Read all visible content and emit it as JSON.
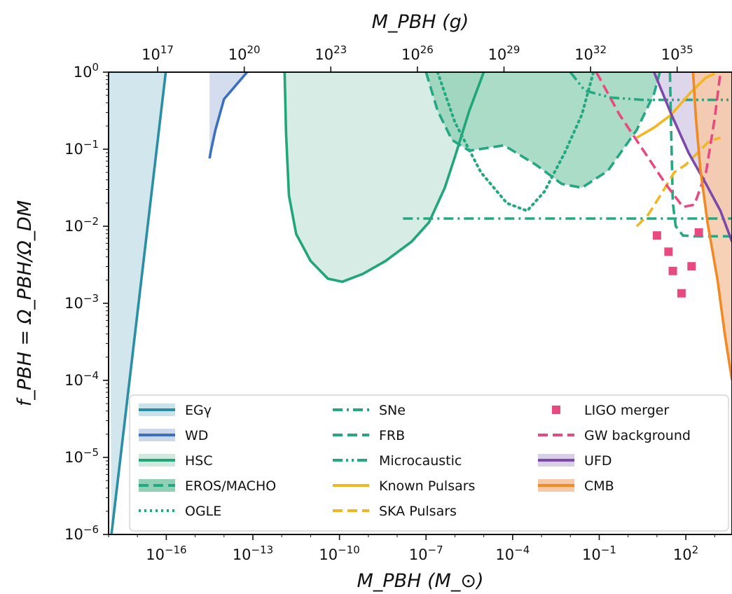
{
  "chart_data": {
    "type": "line",
    "title": "",
    "xlabel_bottom": "M_PBH (M_⊙)",
    "xlabel_top": "M_PBH (g)",
    "ylabel": "f_PBH = Ω_PBH/Ω_DM",
    "x_scale": "log",
    "y_scale": "log",
    "xlim_log10": [
      -18,
      3.6
    ],
    "ylim_log10": [
      -6,
      0
    ],
    "x_ticks_bottom": [
      {
        "value": -16,
        "label": "10^-16"
      },
      {
        "value": -13,
        "label": "10^-13"
      },
      {
        "value": -10,
        "label": "10^-10"
      },
      {
        "value": -7,
        "label": "10^-7"
      },
      {
        "value": -4,
        "label": "10^-4"
      },
      {
        "value": -1,
        "label": "10^-1"
      },
      {
        "value": 2,
        "label": "10^2"
      }
    ],
    "x_ticks_top": [
      {
        "value": 17,
        "label": "10^17"
      },
      {
        "value": 20,
        "label": "10^20"
      },
      {
        "value": 23,
        "label": "10^23"
      },
      {
        "value": 26,
        "label": "10^26"
      },
      {
        "value": 29,
        "label": "10^29"
      },
      {
        "value": 32,
        "label": "10^32"
      },
      {
        "value": 35,
        "label": "10^35"
      }
    ],
    "grams_per_msun_log10": 33.3,
    "y_ticks": [
      {
        "value": 0,
        "label": "10^0"
      },
      {
        "value": -1,
        "label": "10^-1"
      },
      {
        "value": -2,
        "label": "10^-2"
      },
      {
        "value": -3,
        "label": "10^-3"
      },
      {
        "value": -4,
        "label": "10^-4"
      },
      {
        "value": -5,
        "label": "10^-5"
      },
      {
        "value": -6,
        "label": "10^-6"
      }
    ],
    "legend_position": "lower-right",
    "series": [
      {
        "name": "EGγ",
        "color": "#2a8fa5",
        "fill": "#c9e2ea",
        "style": "solid",
        "points": [
          [
            -17.9,
            -6.0
          ],
          [
            -16.02,
            0.0
          ]
        ]
      },
      {
        "name": "WD",
        "color": "#3b6fc0",
        "fill": "#ccd7ea",
        "style": "solid",
        "points": [
          [
            -14.5,
            -1.12
          ],
          [
            -14.46,
            -1.03
          ],
          [
            -14.3,
            -0.75
          ],
          [
            -14.0,
            -0.35
          ],
          [
            -13.2,
            0.0
          ]
        ]
      },
      {
        "name": "HSC",
        "color": "#21a67a",
        "fill": "#cfe9df",
        "style": "solid",
        "points": [
          [
            -11.9,
            0.0
          ],
          [
            -11.85,
            -0.8
          ],
          [
            -11.75,
            -1.6
          ],
          [
            -11.5,
            -2.1
          ],
          [
            -11.0,
            -2.45
          ],
          [
            -10.4,
            -2.68
          ],
          [
            -9.9,
            -2.72
          ],
          [
            -9.2,
            -2.62
          ],
          [
            -8.4,
            -2.45
          ],
          [
            -7.5,
            -2.2
          ],
          [
            -6.9,
            -1.95
          ],
          [
            -6.35,
            -1.5
          ],
          [
            -6.0,
            -1.1
          ],
          [
            -5.5,
            -0.5
          ],
          [
            -5.0,
            0.0
          ]
        ]
      },
      {
        "name": "SNe",
        "color": "#24a882",
        "style": "dashdot",
        "points": [
          [
            -7.8,
            -1.9
          ],
          [
            3.6,
            -1.9
          ]
        ]
      },
      {
        "name": "FRB",
        "color": "#24a882",
        "style": "dashed",
        "points": [
          [
            1.45,
            0.0
          ],
          [
            1.5,
            -0.9
          ],
          [
            1.55,
            -1.7
          ],
          [
            1.65,
            -2.0
          ],
          [
            1.9,
            -2.12
          ],
          [
            2.3,
            -2.13
          ],
          [
            3.6,
            -2.13
          ]
        ]
      },
      {
        "name": "Microcaustic",
        "color": "#24a882",
        "style": "dashdotdot",
        "points": [
          [
            -2.0,
            0.0
          ],
          [
            -1.5,
            -0.24
          ],
          [
            -0.6,
            -0.33
          ],
          [
            0.5,
            -0.36
          ],
          [
            1.2,
            -0.36
          ],
          [
            2.0,
            -0.36
          ],
          [
            3.6,
            -0.36
          ]
        ]
      },
      {
        "name": "EROS/MACHO",
        "color": "#24a882",
        "fill": "#8fd0b6",
        "style": "dashed",
        "points": [
          [
            -7.0,
            0.0
          ],
          [
            -6.6,
            -0.5
          ],
          [
            -6.1,
            -0.88
          ],
          [
            -5.5,
            -1.02
          ],
          [
            -4.3,
            -0.95
          ],
          [
            -3.2,
            -1.2
          ],
          [
            -2.3,
            -1.45
          ],
          [
            -1.6,
            -1.5
          ],
          [
            -0.7,
            -1.28
          ],
          [
            0.3,
            -0.75
          ],
          [
            0.9,
            -0.28
          ],
          [
            1.1,
            0.0
          ]
        ]
      },
      {
        "name": "OGLE",
        "color": "#24a882",
        "style": "dotted",
        "points": [
          [
            -6.6,
            0.0
          ],
          [
            -6.0,
            -0.65
          ],
          [
            -5.1,
            -1.3
          ],
          [
            -4.2,
            -1.7
          ],
          [
            -3.5,
            -1.8
          ],
          [
            -2.9,
            -1.55
          ],
          [
            -2.2,
            -1.05
          ],
          [
            -1.6,
            -0.55
          ],
          [
            -1.2,
            0.0
          ]
        ]
      },
      {
        "name": "Known Pulsars",
        "color": "#f2b620",
        "style": "solid",
        "points": [
          [
            0.3,
            -0.85
          ],
          [
            0.9,
            -0.72
          ],
          [
            1.5,
            -0.55
          ],
          [
            2.2,
            -0.25
          ],
          [
            2.7,
            -0.07
          ],
          [
            3.0,
            -0.02
          ]
        ]
      },
      {
        "name": "SKA Pulsars",
        "color": "#f2b620",
        "style": "dashed",
        "points": [
          [
            0.3,
            -2.0
          ],
          [
            0.7,
            -1.85
          ],
          [
            1.2,
            -1.55
          ],
          [
            1.6,
            -1.3
          ],
          [
            2.0,
            -1.2
          ],
          [
            2.4,
            -1.05
          ],
          [
            2.8,
            -0.9
          ],
          [
            3.2,
            -0.85
          ]
        ]
      },
      {
        "name": "LIGO merger",
        "color": "#e84a7f",
        "style": "markers",
        "points": [
          [
            1.0,
            -2.12
          ],
          [
            1.4,
            -2.33
          ],
          [
            1.55,
            -2.58
          ],
          [
            1.85,
            -2.87
          ],
          [
            2.2,
            -2.52
          ],
          [
            2.45,
            -2.08
          ]
        ]
      },
      {
        "name": "GW background",
        "color": "#e84a7f",
        "style": "dashed",
        "points": [
          [
            -1.1,
            0.0
          ],
          [
            -0.3,
            -0.55
          ],
          [
            0.5,
            -1.0
          ],
          [
            1.3,
            -1.45
          ],
          [
            1.9,
            -1.75
          ],
          [
            2.3,
            -1.72
          ],
          [
            2.7,
            -1.3
          ],
          [
            3.0,
            -0.6
          ],
          [
            3.2,
            0.0
          ]
        ]
      },
      {
        "name": "UFD",
        "color": "#7b4aa8",
        "fill": "#d8cfe6",
        "style": "solid",
        "points": [
          [
            0.9,
            0.0
          ],
          [
            1.5,
            -0.55
          ],
          [
            2.1,
            -1.05
          ],
          [
            2.7,
            -1.45
          ],
          [
            3.2,
            -1.8
          ],
          [
            3.6,
            -2.2
          ]
        ]
      },
      {
        "name": "CMB",
        "color": "#f08a24",
        "fill": "#f6c9a8",
        "style": "solid",
        "points": [
          [
            2.25,
            0.0
          ],
          [
            2.35,
            -0.6
          ],
          [
            2.5,
            -1.25
          ],
          [
            2.75,
            -1.95
          ],
          [
            3.1,
            -2.7
          ],
          [
            3.35,
            -3.4
          ],
          [
            3.6,
            -4.0
          ]
        ]
      }
    ]
  }
}
